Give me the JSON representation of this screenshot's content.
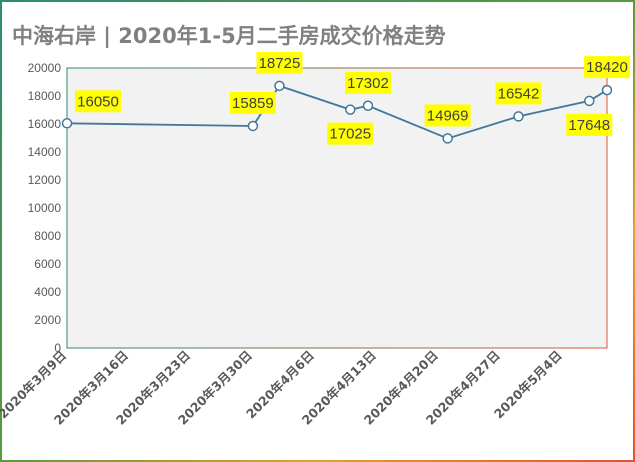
{
  "title": "中海右岸 | 2020年1-5月二手房成交价格走势",
  "colors": {
    "plot_bg": "#f2f2f2",
    "line": "#41789b",
    "marker_fill": "#ffffff",
    "label_bg": "#ffff00",
    "frame_left": "#2e8b70",
    "frame_right": "#e0542e"
  },
  "chart_data": {
    "type": "line",
    "title": "中海右岸 | 2020年1-5月二手房成交价格走势",
    "xlabel": "",
    "ylabel": "",
    "x_axis_type": "date",
    "xlim": [
      "2020-03-09",
      "2020-05-09"
    ],
    "ylim": [
      0,
      20000
    ],
    "y_ticks": [
      0,
      2000,
      4000,
      6000,
      8000,
      10000,
      12000,
      14000,
      16000,
      18000,
      20000
    ],
    "y_tick_labels": [
      "0",
      "2000",
      "4000",
      "6000",
      "8000",
      "10000",
      "12000",
      "14000",
      "16000",
      "18000",
      "20000"
    ],
    "x_ticks": [
      "2020-03-09",
      "2020-03-16",
      "2020-03-23",
      "2020-03-30",
      "2020-04-06",
      "2020-04-13",
      "2020-04-20",
      "2020-04-27",
      "2020-05-04"
    ],
    "x_tick_labels": [
      "2020年3月9日",
      "2020年3月16日",
      "2020年3月23日",
      "2020年3月30日",
      "2020年4月6日",
      "2020年4月13日",
      "2020年4月20日",
      "2020年4月27日",
      "2020年5月4日"
    ],
    "grid": false,
    "legend": "none",
    "series": [
      {
        "points": [
          {
            "x": "2020-03-09",
            "y": 16050,
            "label": "16050",
            "label_pos": "above-right"
          },
          {
            "x": "2020-03-30",
            "y": 15859,
            "label": "15859",
            "label_pos": "above"
          },
          {
            "x": "2020-04-02",
            "y": 18725,
            "label": "18725",
            "label_pos": "above"
          },
          {
            "x": "2020-04-10",
            "y": 17025,
            "label": "17025",
            "label_pos": "below"
          },
          {
            "x": "2020-04-12",
            "y": 17302,
            "label": "17302",
            "label_pos": "above"
          },
          {
            "x": "2020-04-21",
            "y": 14969,
            "label": "14969",
            "label_pos": "above"
          },
          {
            "x": "2020-04-29",
            "y": 16542,
            "label": "16542",
            "label_pos": "above"
          },
          {
            "x": "2020-05-07",
            "y": 17648,
            "label": "17648",
            "label_pos": "below"
          },
          {
            "x": "2020-05-09",
            "y": 18420,
            "label": "18420",
            "label_pos": "above"
          }
        ]
      }
    ]
  }
}
